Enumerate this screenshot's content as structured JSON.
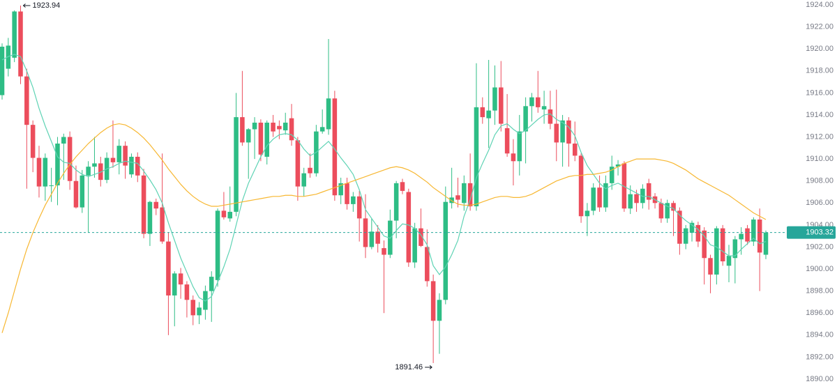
{
  "chart_data": {
    "type": "candlestick",
    "up_color": "#2ebd85",
    "down_color": "#ec4d5c",
    "open": [
      1915.8,
      1918.2,
      1919.2,
      1923.4,
      1917.5,
      1913.1,
      1910.1,
      1907.5,
      1907.6,
      1907.6,
      1911.4,
      1912,
      1908,
      1905.6,
      1908.5,
      1909.3,
      1909.6,
      1908.1,
      1910.1,
      1909.7,
      1911.2,
      1908.6,
      1910.2,
      1908.5,
      1903.2,
      1906.1,
      1905.6,
      1902.5,
      1897.6,
      1899.6,
      1898.6,
      1897.2,
      1895.8,
      1896.3,
      1898,
      1899,
      1905.3,
      1904.6,
      1905.2,
      1913.8,
      1911.5,
      1912.7,
      1913.3,
      1910.2,
      1913.3,
      1913,
      1912.6,
      1913.7,
      1911.7,
      1907.5,
      1909.2,
      1908.7,
      1912.5,
      1912.7,
      1915.5,
      1906.7,
      1907.8,
      1905.9,
      1906.6,
      1904.6,
      1902,
      1903.4,
      1901.9,
      1901.3,
      1904.4,
      1907.9,
      1907,
      1900.6,
      1903.7,
      1902,
      1898.9,
      1895.3,
      1897.2,
      1906,
      1906.7,
      1906,
      1907.8,
      1905.7,
      1914.7,
      1913.7,
      1914.4,
      1916.5,
      1912.8,
      1910.5,
      1909.8,
      1912.5,
      1914.8,
      1915.6,
      1914.5,
      1914.5,
      1913.2,
      1911.5,
      1913.5,
      1911.4,
      1910.3,
      1904.8,
      1905.3,
      1907.4,
      1905.6,
      1907.8,
      1909.3,
      1909.6,
      1905.5,
      1906.8,
      1906,
      1907.8,
      1906.6,
      1906,
      1904.6,
      1906,
      1905.3,
      1902.3,
      1903.3,
      1904,
      1903.5,
      1901,
      1899.5,
      1903.7,
      1900.3,
      1901,
      1902.7,
      1903.7,
      1902.5,
      1904.5,
      1901.3
    ],
    "high": [
      1920.5,
      1921,
      1923.5,
      1923.94,
      1918.2,
      1913.5,
      1911.2,
      1910.5,
      1909.2,
      1912,
      1912.3,
      1912.5,
      1909.4,
      1909,
      1909.8,
      1912,
      1910.2,
      1910.6,
      1913.5,
      1911.8,
      1911.6,
      1910.5,
      1910.6,
      1909.1,
      1906.2,
      1906.4,
      1910.5,
      1903.3,
      1899.8,
      1900.1,
      1898.9,
      1897.6,
      1897,
      1898.5,
      1899.8,
      1905.5,
      1907,
      1907.5,
      1916,
      1918,
      1912.8,
      1913.8,
      1913.6,
      1913.5,
      1914,
      1913.5,
      1914.2,
      1915,
      1912,
      1909.2,
      1910.5,
      1913.1,
      1914.5,
      1920.9,
      1916.2,
      1908.3,
      1908.3,
      1907,
      1907.1,
      1906.8,
      1904.6,
      1904,
      1902.6,
      1905.4,
      1908,
      1908.2,
      1907.3,
      1904.2,
      1905.5,
      1903.6,
      1899.5,
      1897.8,
      1907.5,
      1909.2,
      1908.3,
      1908.5,
      1910.5,
      1918.7,
      1915.6,
      1919,
      1918.5,
      1918.9,
      1915.9,
      1911.8,
      1914,
      1915.6,
      1916,
      1918,
      1916.2,
      1916.2,
      1916.3,
      1914,
      1913.8,
      1913.4,
      1910.5,
      1906,
      1907.8,
      1908.5,
      1908.5,
      1910.3,
      1909.9,
      1909.8,
      1907.6,
      1907.2,
      1907.7,
      1908.2,
      1906.9,
      1906.4,
      1906.3,
      1906.2,
      1905.6,
      1904,
      1904.4,
      1904.3,
      1903.8,
      1901.3,
      1903.9,
      1904,
      1902.2,
      1903,
      1903.8,
      1904,
      1904.7,
      1905.5,
      1903.5
    ],
    "low": [
      1915.4,
      1917.5,
      1918.8,
      1916.8,
      1907.3,
      1908.8,
      1906.5,
      1906.2,
      1906.1,
      1905.8,
      1908.1,
      1907.2,
      1905.5,
      1905.1,
      1903.3,
      1908.3,
      1907.5,
      1907.8,
      1909.2,
      1908.6,
      1908.2,
      1908.3,
      1907.9,
      1902.8,
      1902.1,
      1904.9,
      1902.3,
      1894,
      1894.8,
      1897.3,
      1895.6,
      1894.9,
      1895,
      1895.4,
      1895.2,
      1898.4,
      1904.5,
      1904.3,
      1904.8,
      1911.2,
      1908.2,
      1910,
      1909.8,
      1909.5,
      1912,
      1911.8,
      1912.2,
      1911.2,
      1906.2,
      1906.6,
      1908.3,
      1908.4,
      1912.3,
      1912.2,
      1906.2,
      1905.9,
      1905.4,
      1905.2,
      1902.5,
      1901,
      1901.8,
      1901.5,
      1896,
      1901,
      1902.8,
      1906.8,
      1900.2,
      1900.1,
      1902,
      1898.4,
      1891.46,
      1892.3,
      1896.8,
      1905.5,
      1905.6,
      1905.3,
      1905.3,
      1905.3,
      1913.2,
      1911,
      1913.1,
      1912.5,
      1910.2,
      1907.6,
      1908.5,
      1909.6,
      1913.4,
      1914.2,
      1913.2,
      1912.7,
      1909.8,
      1909.3,
      1909.3,
      1909.8,
      1904.2,
      1903,
      1904.9,
      1905.2,
      1905.2,
      1907.2,
      1908.5,
      1905.2,
      1905,
      1905.2,
      1905.5,
      1905.4,
      1905.5,
      1904.2,
      1904.2,
      1903,
      1901.3,
      1901.8,
      1902.5,
      1902,
      1898.6,
      1897.8,
      1898.6,
      1900.3,
      1898.8,
      1898.7,
      1901.3,
      1902.2,
      1902.1,
      1898,
      1900.9
    ],
    "close": [
      1920.2,
      1920.3,
      1923.4,
      1917.5,
      1913.1,
      1910.1,
      1907.5,
      1910.1,
      1907.6,
      1911.4,
      1912,
      1908,
      1905.6,
      1908.5,
      1909.3,
      1909.6,
      1908.1,
      1910.1,
      1909.7,
      1911.2,
      1909.4,
      1910.2,
      1908.5,
      1903.2,
      1906.1,
      1905.5,
      1902.5,
      1897.6,
      1899.6,
      1898.6,
      1897.2,
      1895.8,
      1896.5,
      1898,
      1899.3,
      1905.3,
      1904.7,
      1905.2,
      1913.8,
      1911.5,
      1912.7,
      1913.3,
      1910.4,
      1913.3,
      1912.5,
      1912.7,
      1913.3,
      1911.7,
      1907.5,
      1908.7,
      1908.7,
      1912.5,
      1912.9,
      1915.5,
      1906.7,
      1907.8,
      1905.9,
      1906.6,
      1904.6,
      1902,
      1903.4,
      1902.3,
      1901.3,
      1904.4,
      1907.8,
      1907.1,
      1900.6,
      1903.7,
      1902.1,
      1898.9,
      1895.3,
      1897.2,
      1906.1,
      1906.5,
      1906.3,
      1907.8,
      1905.7,
      1914.7,
      1913.8,
      1914.4,
      1916.5,
      1913.2,
      1910.5,
      1909.8,
      1912.5,
      1914.8,
      1915.6,
      1914.7,
      1914.8,
      1913.2,
      1911.5,
      1913.5,
      1911.4,
      1910.3,
      1904.8,
      1905.3,
      1907.4,
      1905.6,
      1907.8,
      1909.3,
      1909.5,
      1905.5,
      1906.8,
      1906,
      1907.3,
      1906.3,
      1906,
      1904.6,
      1906,
      1905.3,
      1902.3,
      1903.7,
      1904.2,
      1902.5,
      1901,
      1899.5,
      1903.7,
      1900.7,
      1901.2,
      1902.7,
      1903.2,
      1902.5,
      1904.5,
      1901.5,
      1903.32
    ],
    "series": [
      {
        "color": "#5ed3b4",
        "values": [
          1919,
          1919.3,
          1919.5,
          1919.3,
          1918,
          1916.5,
          1914.6,
          1913,
          1911.6,
          1910.2,
          1909.7,
          1909.6,
          1909,
          1908.6,
          1908.4,
          1908.6,
          1908.8,
          1909.1,
          1909.3,
          1909.6,
          1909.8,
          1909.7,
          1909.6,
          1908.9,
          1908.1,
          1907.2,
          1906,
          1904.2,
          1902.6,
          1901,
          1899.7,
          1898.4,
          1897.4,
          1897.1,
          1897.5,
          1898.8,
          1900.2,
          1901.8,
          1904,
          1906.2,
          1907.8,
          1909,
          1910.2,
          1911.2,
          1911.8,
          1912.2,
          1912.3,
          1912.2,
          1911.7,
          1910.9,
          1910.3,
          1910.6,
          1911.1,
          1911.6,
          1910.9,
          1910.1,
          1909.4,
          1908.6,
          1907.2,
          1905.4,
          1904.6,
          1903.8,
          1903,
          1902.8,
          1903.5,
          1904.1,
          1904,
          1903.7,
          1903.1,
          1902.2,
          1900.3,
          1899.5,
          1900.2,
          1901.3,
          1902.6,
          1904.8,
          1906.3,
          1908.3,
          1909.6,
          1910.8,
          1912.2,
          1913,
          1913.2,
          1912.7,
          1912.3,
          1912.6,
          1913.1,
          1913.6,
          1914,
          1914.1,
          1913.6,
          1913.3,
          1912.9,
          1912.1,
          1910.6,
          1909.4,
          1908.6,
          1907.8,
          1907.3,
          1907.6,
          1907.8,
          1907.5,
          1907.2,
          1906.9,
          1906.6,
          1906.6,
          1906.3,
          1906,
          1905.7,
          1905.5,
          1904.9,
          1904.4,
          1904,
          1903.6,
          1903,
          1902.2,
          1902,
          1901.6,
          1901.2,
          1901.2,
          1901.8,
          1902.3,
          1902.8,
          1902.3,
          1902.5
        ]
      },
      {
        "color": "#f7b731",
        "values": [
          1894.2,
          1896,
          1898,
          1900,
          1901.8,
          1903.3,
          1904.6,
          1905.8,
          1906.8,
          1907.8,
          1908.7,
          1909.5,
          1910.2,
          1910.8,
          1911.4,
          1911.9,
          1912.4,
          1912.8,
          1913.1,
          1913.2,
          1913.1,
          1912.8,
          1912.4,
          1911.9,
          1911.3,
          1910.6,
          1909.9,
          1909.1,
          1908.4,
          1907.7,
          1907.1,
          1906.6,
          1906.2,
          1905.9,
          1905.7,
          1905.7,
          1905.8,
          1905.9,
          1906,
          1906.1,
          1906.2,
          1906.3,
          1906.4,
          1906.5,
          1906.6,
          1906.6,
          1906.7,
          1906.7,
          1906.6,
          1906.6,
          1906.7,
          1906.8,
          1907,
          1907.2,
          1907.4,
          1907.6,
          1907.8,
          1908,
          1908.2,
          1908.4,
          1908.6,
          1908.8,
          1909,
          1909.2,
          1909.3,
          1909.2,
          1909,
          1908.7,
          1908.3,
          1907.9,
          1907.4,
          1907,
          1906.6,
          1906.2,
          1905.9,
          1905.8,
          1905.8,
          1905.9,
          1906.1,
          1906.3,
          1906.5,
          1906.6,
          1906.6,
          1906.5,
          1906.5,
          1906.6,
          1906.8,
          1907.1,
          1907.4,
          1907.7,
          1908,
          1908.2,
          1908.4,
          1908.5,
          1908.5,
          1908.6,
          1908.6,
          1908.7,
          1908.8,
          1909,
          1909.3,
          1909.6,
          1909.8,
          1910,
          1910,
          1910,
          1910,
          1909.9,
          1909.8,
          1909.6,
          1909.3,
          1909,
          1908.6,
          1908.2,
          1907.9,
          1907.6,
          1907.3,
          1907,
          1906.7,
          1906.3,
          1905.9,
          1905.5,
          1905.1,
          1904.8,
          1904.5
        ]
      }
    ],
    "last_price": 1903.32,
    "last_price_color": "#26a69a",
    "max_label": 1923.94,
    "min_label": 1891.46,
    "ylim": [
      1890,
      1924
    ],
    "yticks": [
      {
        "value": 1890,
        "label": "1890.00"
      },
      {
        "value": 1892,
        "label": "1892.00"
      },
      {
        "value": 1894,
        "label": "1894.00"
      },
      {
        "value": 1896,
        "label": "1896.00"
      },
      {
        "value": 1898,
        "label": "1898.00"
      },
      {
        "value": 1900,
        "label": "1900.00"
      },
      {
        "value": 1902,
        "label": "1902.00"
      },
      {
        "value": 1904,
        "label": "1904.00"
      },
      {
        "value": 1906,
        "label": "1906.00"
      },
      {
        "value": 1908,
        "label": "1908.00"
      },
      {
        "value": 1910,
        "label": "1910.00"
      },
      {
        "value": 1912,
        "label": "1912.00"
      },
      {
        "value": 1914,
        "label": "1914.00"
      },
      {
        "value": 1916,
        "label": "1916.00"
      },
      {
        "value": 1918,
        "label": "1918.00"
      },
      {
        "value": 1920,
        "label": "1920.00"
      },
      {
        "value": 1922,
        "label": "1922.00"
      },
      {
        "value": 1924,
        "label": "1924.00"
      }
    ],
    "grid": false
  }
}
